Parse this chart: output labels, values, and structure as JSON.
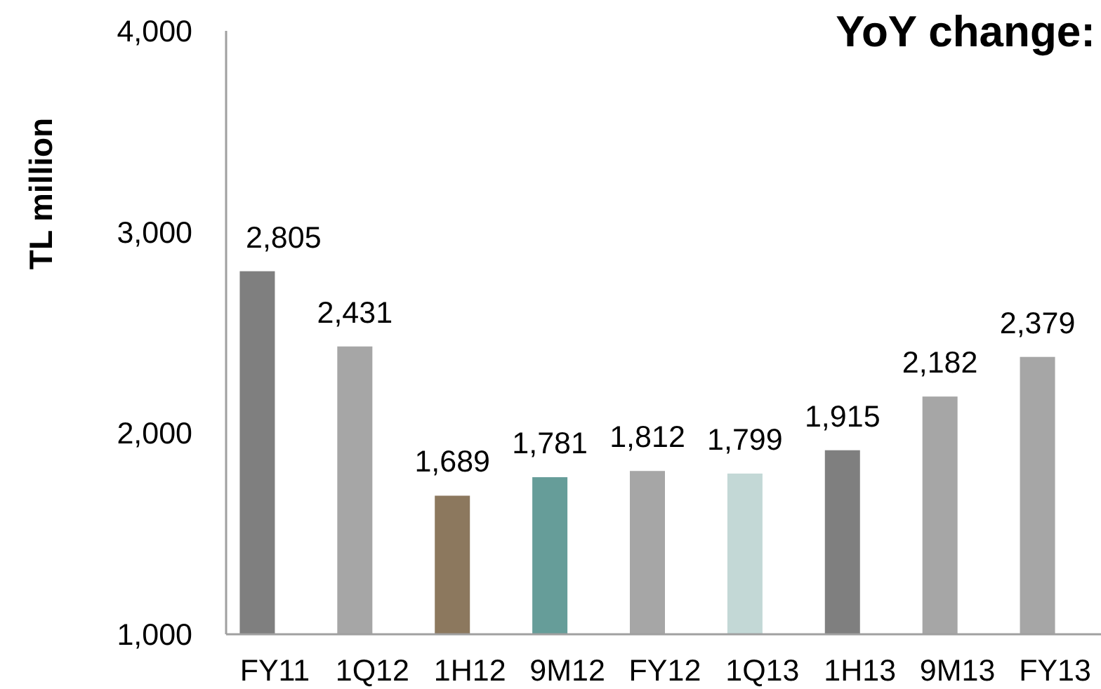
{
  "chart_data": {
    "type": "bar",
    "title": "YoY change:",
    "ylabel": "TL million",
    "categories": [
      "FY11",
      "1Q12",
      "1H12",
      "9M12",
      "FY12",
      "1Q13",
      "1H13",
      "9M13",
      "FY13"
    ],
    "values": [
      2805,
      2431,
      1689,
      1781,
      1812,
      1799,
      1915,
      2182,
      2379
    ],
    "colors": [
      "#7f7f7f",
      "#a6a6a6",
      "#8c785e",
      "#669d99",
      "#a6a6a6",
      "#c3d8d6",
      "#7f7f7f",
      "#a6a6a6",
      "#a6a6a6"
    ],
    "value_labels": [
      "2,805",
      "2,431",
      "1,689",
      "1,781",
      "1,812",
      "1,799",
      "1,915",
      "2,182",
      "2,379"
    ],
    "ylim": [
      1000,
      4000
    ],
    "yticks": [
      {
        "value": 1000,
        "label": "1,000"
      },
      {
        "value": 2000,
        "label": "2,000"
      },
      {
        "value": 3000,
        "label": "3,000"
      },
      {
        "value": 4000,
        "label": "4,000"
      }
    ]
  }
}
